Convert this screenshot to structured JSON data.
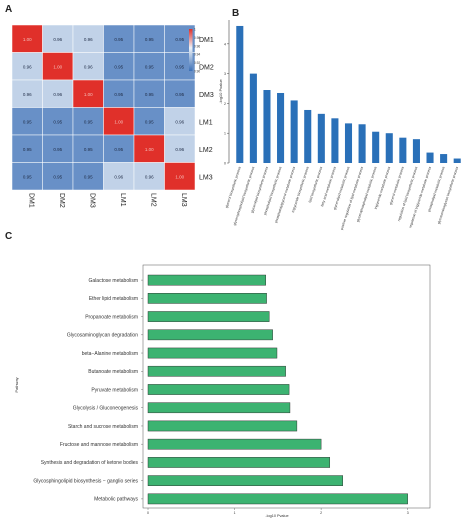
{
  "panels": {
    "a": "A",
    "b": "B",
    "c": "C"
  },
  "chart_data": [
    {
      "panel": "A",
      "type": "heatmap",
      "rows": [
        "DM1",
        "DM2",
        "DM3",
        "LM1",
        "LM2",
        "LM3"
      ],
      "cols": [
        "DM1",
        "DM2",
        "DM3",
        "LM1",
        "LM2",
        "LM3"
      ],
      "values": [
        [
          1.0,
          0.96,
          0.96,
          0.95,
          0.95,
          0.95
        ],
        [
          0.96,
          1.0,
          0.96,
          0.95,
          0.95,
          0.95
        ],
        [
          0.96,
          0.96,
          1.0,
          0.95,
          0.95,
          0.95
        ],
        [
          0.95,
          0.95,
          0.95,
          1.0,
          0.95,
          0.96
        ],
        [
          0.95,
          0.95,
          0.95,
          0.95,
          1.0,
          0.96
        ],
        [
          0.95,
          0.95,
          0.95,
          0.96,
          0.96,
          1.0
        ]
      ],
      "colorbar": {
        "ticks": [
          "1",
          "0.98",
          "0.96",
          "0.94",
          "0.92",
          "0.90"
        ],
        "min": 0.9,
        "max": 1.0
      },
      "colors": {
        "low": "#3b6fb6",
        "mid": "#eef3f8",
        "high": "#e0302a"
      }
    },
    {
      "panel": "B",
      "type": "bar",
      "ylabel": "-log10 Pvalue",
      "yticks": [
        0,
        1,
        2,
        3,
        4
      ],
      "ylim": [
        0,
        4.8
      ],
      "values": [
        4.6,
        3.0,
        2.45,
        2.35,
        2.1,
        1.78,
        1.65,
        1.5,
        1.33,
        1.3,
        1.05,
        1.0,
        0.85,
        0.8,
        0.35,
        0.3,
        0.15
      ],
      "categories": [
        "glycerol biosynthetic process",
        "glycerophospholipid biosynthetic process",
        "glycerolipid biosynthetic process",
        "phospholipid biosynthetic process",
        "phosphatidylglycerol metabolic process",
        "triglyceride biosynthetic process",
        "lipid biosynthetic process",
        "fatty acid metabolic process",
        "glycerolipid metabolic process",
        "positive regulation of lipid metabolic process",
        "glycerophospholipid metabolic process",
        "triglyceride metabolic process",
        "glycerol metabolic process",
        "regulation of lipid biosynthetic process",
        "regulation of triglyceride metabolic process",
        "phospholipid metabolic process",
        "glycosaminoglycan biosynthetic process"
      ],
      "color": "#2a70b8"
    },
    {
      "panel": "C",
      "type": "bar",
      "orientation": "horizontal",
      "ylabel": "Pathway",
      "xlabel": "-log10 Pvalue",
      "xticks": [
        "0",
        "1",
        "2",
        "3"
      ],
      "xlim": [
        0,
        3.2
      ],
      "categories": [
        "Galactose metabolism",
        "Ether lipid metabolism",
        "Propanoate metabolism",
        "Glycosaminoglycan degradation",
        "beta−Alanine metabolism",
        "Butanoate metabolism",
        "Pyruvate metabolism",
        "Glycolysis / Gluconeogenesis",
        "Starch and sucrose metabolism",
        "Fructose and mannose metabolism",
        "Synthesis and degradation of ketone bodies",
        "Glycosphingolipid biosynthesis − ganglio series",
        "Metabolic pathways"
      ],
      "values": [
        1.36,
        1.37,
        1.4,
        1.44,
        1.49,
        1.59,
        1.63,
        1.64,
        1.72,
        2.0,
        2.1,
        2.25,
        3.0
      ],
      "color": "#3cb371"
    }
  ]
}
